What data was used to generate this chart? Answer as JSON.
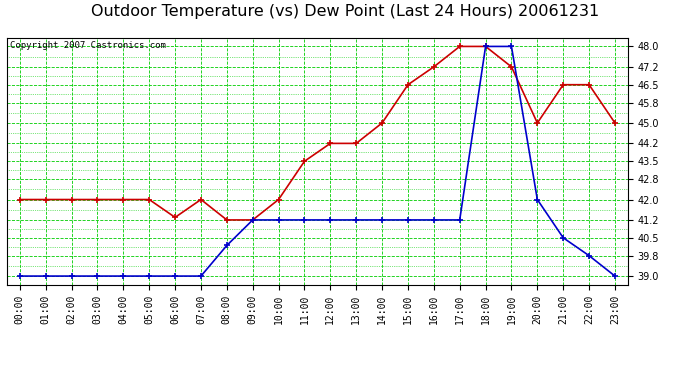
{
  "title": "Outdoor Temperature (vs) Dew Point (Last 24 Hours) 20061231",
  "copyright": "Copyright 2007 Castronics.com",
  "x_labels": [
    "00:00",
    "01:00",
    "02:00",
    "03:00",
    "04:00",
    "05:00",
    "06:00",
    "07:00",
    "08:00",
    "09:00",
    "10:00",
    "11:00",
    "12:00",
    "13:00",
    "14:00",
    "15:00",
    "16:00",
    "17:00",
    "18:00",
    "19:00",
    "20:00",
    "21:00",
    "22:00",
    "23:00"
  ],
  "temp_values": [
    42.0,
    42.0,
    42.0,
    42.0,
    42.0,
    42.0,
    41.3,
    42.0,
    41.2,
    41.2,
    42.0,
    43.5,
    44.2,
    44.2,
    45.0,
    46.5,
    47.2,
    48.0,
    48.0,
    47.2,
    45.0,
    46.5,
    46.5,
    45.0
  ],
  "dew_values": [
    39.0,
    39.0,
    39.0,
    39.0,
    39.0,
    39.0,
    39.0,
    39.0,
    40.2,
    41.2,
    41.2,
    41.2,
    41.2,
    41.2,
    41.2,
    41.2,
    41.2,
    41.2,
    48.0,
    48.0,
    42.0,
    40.5,
    39.8,
    39.0
  ],
  "temp_color": "#cc0000",
  "dew_color": "#0000cc",
  "grid_major_color": "#00cc00",
  "grid_minor_color": "#00cc00",
  "bg_color": "#ffffff",
  "plot_bg_color": "#ffffff",
  "ylim_min": 38.65,
  "ylim_max": 48.35,
  "yticks": [
    39.0,
    39.8,
    40.5,
    41.2,
    42.0,
    42.8,
    43.5,
    44.2,
    45.0,
    45.8,
    46.5,
    47.2,
    48.0
  ],
  "title_fontsize": 11.5,
  "tick_fontsize": 7,
  "copyright_fontsize": 6.5,
  "marker_size": 4,
  "linewidth": 1.2
}
